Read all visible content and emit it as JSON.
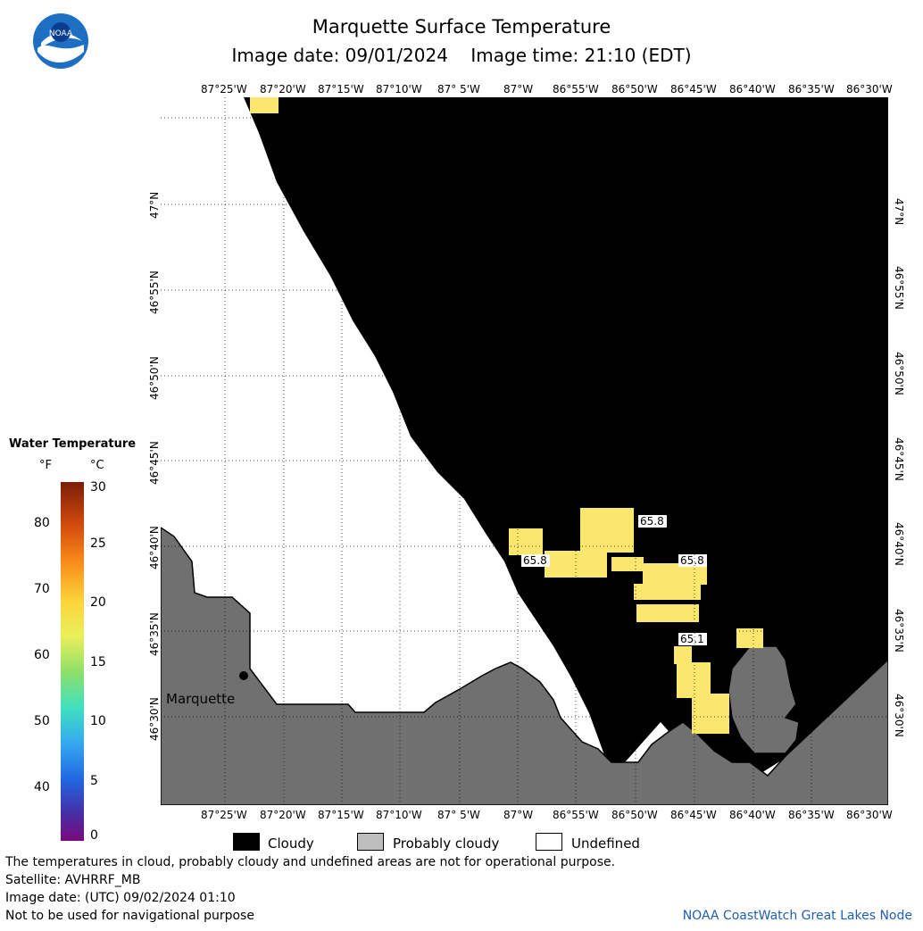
{
  "header": {
    "title": "Marquette Surface Temperature",
    "date_line": "Image date: 09/01/2024    Image time: 21:10 (EDT)"
  },
  "logo": {
    "text": "NOAA",
    "icon": "noaa-logo-icon"
  },
  "map": {
    "lon_ticks": [
      "87°25'W",
      "87°20'W",
      "87°15'W",
      "87°10'W",
      "87° 5'W",
      "87°W",
      "86°55'W",
      "86°50'W",
      "86°45'W",
      "86°40'W",
      "86°35'W",
      "86°30'W"
    ],
    "lat_ticks": [
      "47°N",
      "46°55'N",
      "46°50'N",
      "46°45'N",
      "46°40'N",
      "46°35'N",
      "46°30'N"
    ],
    "city_label": "Marquette",
    "temp_labels": [
      "65.8",
      "65.8",
      "65.8",
      "65.1"
    ],
    "colors": {
      "cloud": "#000000",
      "land": "#707070",
      "undefined": "#ffffff",
      "water_warm": "#fbe76e"
    }
  },
  "legend": {
    "title": "Water Temperature",
    "unit_f": "°F",
    "unit_c": "°C",
    "f_labels": [
      "80",
      "70",
      "60",
      "50",
      "40"
    ],
    "c_labels": [
      "30",
      "25",
      "20",
      "15",
      "10",
      "5",
      "0"
    ]
  },
  "key": {
    "items": [
      {
        "label": "Cloudy",
        "color": "#000000"
      },
      {
        "label": "Probably cloudy",
        "color": "#bdbdbd"
      },
      {
        "label": "Undefined",
        "color": "#ffffff"
      }
    ]
  },
  "notes": {
    "line1": "The temperatures in cloud, probably cloudy and undefined areas are not for operational purpose.",
    "line2": "Satellite: AVHRRF_MB",
    "line3": "Image date: (UTC) 09/02/2024  01:10",
    "line4": "Not to be used for navigational purpose",
    "credit": "NOAA CoastWatch Great Lakes Node"
  }
}
